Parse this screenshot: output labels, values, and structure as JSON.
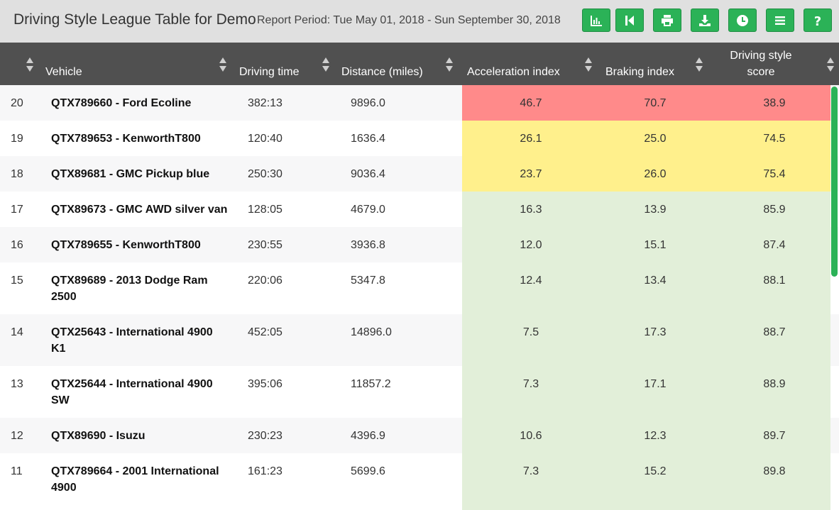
{
  "header": {
    "title": "Driving Style League Table for Demo",
    "period": "Report Period: Tue May 01, 2018 - Sun September 30, 2018"
  },
  "toolbar": [
    {
      "name": "chart-button",
      "icon": "bar-chart-icon"
    },
    {
      "name": "first-page-button",
      "icon": "skip-back-icon"
    },
    {
      "name": "print-button",
      "icon": "print-icon"
    },
    {
      "name": "download-button",
      "icon": "download-icon"
    },
    {
      "name": "history-button",
      "icon": "clock-icon"
    },
    {
      "name": "menu-button",
      "icon": "menu-icon"
    },
    {
      "name": "help-button",
      "icon": "help-icon"
    }
  ],
  "columns": {
    "vehicle": "Vehicle",
    "driving_time": "Driving time",
    "distance": "Distance (miles)",
    "acceleration": "Acceleration index",
    "braking": "Braking index",
    "score_line1": "Driving style",
    "score_line2": "score"
  },
  "colors": {
    "red": "#ff8a8a",
    "yellow": "#fff08c",
    "green": "#e2efd9",
    "accent": "#2bb257",
    "header": "#505050"
  },
  "rows": [
    {
      "rank": "20",
      "vehicle": "QTX789660 - Ford Ecoline",
      "time": "382:13",
      "distance": "9896.0",
      "accel": "46.7",
      "brake": "70.7",
      "score": "38.9",
      "band": "red"
    },
    {
      "rank": "19",
      "vehicle": "QTX789653 - KenworthT800",
      "time": "120:40",
      "distance": "1636.4",
      "accel": "26.1",
      "brake": "25.0",
      "score": "74.5",
      "band": "yellow"
    },
    {
      "rank": "18",
      "vehicle": "QTX89681 - GMC Pickup blue",
      "time": "250:30",
      "distance": "9036.4",
      "accel": "23.7",
      "brake": "26.0",
      "score": "75.4",
      "band": "yellow"
    },
    {
      "rank": "17",
      "vehicle": "QTX89673 - GMC AWD silver van",
      "time": "128:05",
      "distance": "4679.0",
      "accel": "16.3",
      "brake": "13.9",
      "score": "85.9",
      "band": "green"
    },
    {
      "rank": "16",
      "vehicle": "QTX789655 - KenworthT800",
      "time": "230:55",
      "distance": "3936.8",
      "accel": "12.0",
      "brake": "15.1",
      "score": "87.4",
      "band": "green"
    },
    {
      "rank": "15",
      "vehicle": "QTX89689 - 2013 Dodge Ram 2500",
      "time": "220:06",
      "distance": "5347.8",
      "accel": "12.4",
      "brake": "13.4",
      "score": "88.1",
      "band": "green"
    },
    {
      "rank": "14",
      "vehicle": "QTX25643 - International 4900 K1",
      "time": "452:05",
      "distance": "14896.0",
      "accel": "7.5",
      "brake": "17.3",
      "score": "88.7",
      "band": "green"
    },
    {
      "rank": "13",
      "vehicle": "QTX25644 - International 4900 SW",
      "time": "395:06",
      "distance": "11857.2",
      "accel": "7.3",
      "brake": "17.1",
      "score": "88.9",
      "band": "green"
    },
    {
      "rank": "12",
      "vehicle": "QTX89690 - Isuzu",
      "time": "230:23",
      "distance": "4396.9",
      "accel": "10.6",
      "brake": "12.3",
      "score": "89.7",
      "band": "green"
    },
    {
      "rank": "11",
      "vehicle": "QTX789664 - 2001 International 4900",
      "time": "161:23",
      "distance": "5699.6",
      "accel": "7.3",
      "brake": "15.2",
      "score": "89.8",
      "band": "green"
    }
  ]
}
